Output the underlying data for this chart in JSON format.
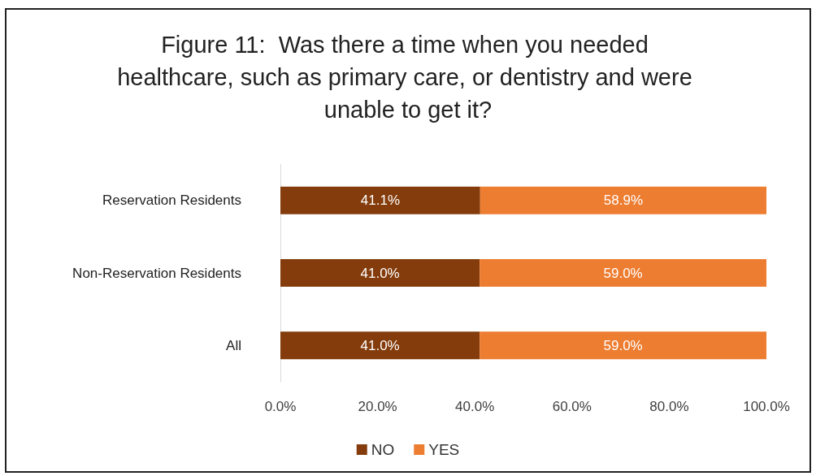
{
  "chart_data": {
    "type": "bar",
    "title": "Figure 11:  Was there a time when you needed healthcare, such as primary care, or dentistry and were unable to get it?",
    "orientation": "horizontal",
    "stacked": true,
    "categories": [
      "Reservation Residents",
      "Non-Reservation Residents",
      "All"
    ],
    "series": [
      {
        "name": "NO",
        "color": "#843c0c",
        "values": [
          41.1,
          41.0,
          41.0
        ],
        "value_labels": [
          "41.1%",
          "41.0%",
          "41.0%"
        ]
      },
      {
        "name": "YES",
        "color": "#ed7d31",
        "values": [
          58.9,
          59.0,
          59.0
        ],
        "value_labels": [
          "58.9%",
          "59.0%",
          "59.0%"
        ]
      }
    ],
    "xlim": [
      0,
      100
    ],
    "xticks": [
      {
        "value": 0,
        "label": "0.0%"
      },
      {
        "value": 20,
        "label": "20.0%"
      },
      {
        "value": 40,
        "label": "40.0%"
      },
      {
        "value": 60,
        "label": "60.0%"
      },
      {
        "value": 80,
        "label": "80.0%"
      },
      {
        "value": 100,
        "label": "100.0%"
      }
    ],
    "grid": false,
    "legend": "bottom"
  }
}
